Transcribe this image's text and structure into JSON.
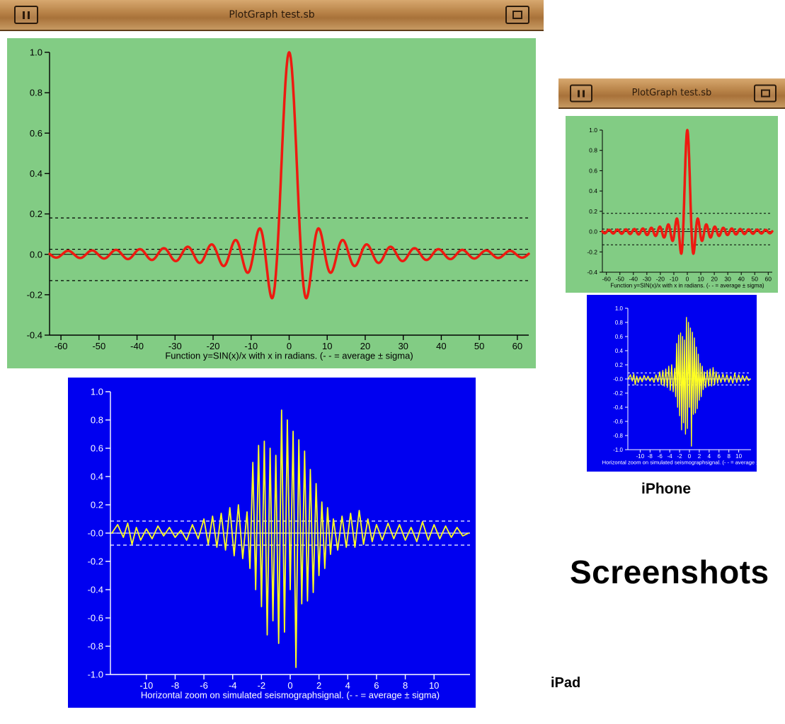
{
  "window_title": "PlotGraph test.sb",
  "device_labels": {
    "iphone": "iPhone",
    "ipad": "iPad",
    "heading": "Screenshots"
  },
  "colors": {
    "green_bg": "#82cc84",
    "blue_bg": "#0000f0",
    "red_line": "#ee1a10",
    "yellow_line": "#ffff22"
  },
  "icons": {
    "pause": "pause-icon",
    "window": "window-icon"
  },
  "chart_data": [
    {
      "type": "line",
      "title": "",
      "xlabel": "Function y=SIN(x)/x with x in radians. (- - = average ± sigma)",
      "ylabel": "",
      "xlim": [
        -63,
        63
      ],
      "ylim": [
        -0.4,
        1.0
      ],
      "x_ticks": [
        -60,
        -50,
        -40,
        -30,
        -20,
        -10,
        0,
        10,
        20,
        30,
        40,
        50,
        60
      ],
      "y_ticks": [
        1.0,
        0.8,
        0.6,
        0.4,
        0.2,
        0.0,
        -0.2,
        -0.4
      ],
      "function": "sin(x)/x",
      "x_range": [
        -63,
        63
      ],
      "reference_lines": {
        "average": 0.025,
        "upper_sigma": 0.18,
        "lower_sigma": -0.13
      },
      "legend": "none",
      "grid": false
    },
    {
      "type": "line",
      "title": "",
      "xlabel": "Horizontal zoom on simulated seismographsignal. (- - = average ± sigma)",
      "ylabel": "",
      "xlim": [
        -12.5,
        12.5
      ],
      "ylim": [
        -1.0,
        1.0
      ],
      "x_ticks": [
        -10,
        -8,
        -6,
        -4,
        -2,
        0,
        2,
        4,
        6,
        8,
        10
      ],
      "y_ticks": [
        1.0,
        0.8,
        0.6,
        0.4,
        0.2,
        -0.0,
        -0.2,
        -0.4,
        -0.6,
        -0.8,
        -1.0
      ],
      "x": [
        -12.4,
        -12.0,
        -11.6,
        -11.3,
        -11.0,
        -10.7,
        -10.4,
        -10.0,
        -9.6,
        -9.2,
        -8.8,
        -8.4,
        -8.0,
        -7.6,
        -7.2,
        -6.8,
        -6.4,
        -6.0,
        -5.7,
        -5.4,
        -5.1,
        -4.8,
        -4.5,
        -4.2,
        -3.9,
        -3.6,
        -3.3,
        -3.0,
        -2.8,
        -2.6,
        -2.4,
        -2.2,
        -2.0,
        -1.8,
        -1.6,
        -1.4,
        -1.2,
        -1.0,
        -0.8,
        -0.6,
        -0.4,
        -0.2,
        0.0,
        0.2,
        0.4,
        0.6,
        0.8,
        1.0,
        1.2,
        1.4,
        1.6,
        1.8,
        2.0,
        2.2,
        2.4,
        2.6,
        2.8,
        3.0,
        3.3,
        3.6,
        3.9,
        4.2,
        4.5,
        4.8,
        5.1,
        5.4,
        5.7,
        6.0,
        6.4,
        6.8,
        7.2,
        7.6,
        8.0,
        8.4,
        8.8,
        9.2,
        9.6,
        10.0,
        10.4,
        10.8,
        11.2,
        11.6,
        12.0,
        12.4
      ],
      "y": [
        0.0,
        0.06,
        -0.03,
        0.07,
        -0.08,
        0.04,
        -0.05,
        0.03,
        -0.04,
        0.05,
        -0.02,
        0.04,
        -0.03,
        0.02,
        -0.05,
        0.06,
        -0.04,
        0.1,
        -0.08,
        0.12,
        -0.1,
        0.14,
        -0.12,
        0.18,
        -0.16,
        0.2,
        -0.18,
        0.15,
        -0.25,
        0.5,
        -0.4,
        0.62,
        -0.52,
        0.65,
        -0.72,
        0.6,
        -0.62,
        0.55,
        -0.78,
        0.87,
        -0.7,
        0.8,
        -0.4,
        0.72,
        -0.95,
        0.66,
        -0.5,
        0.58,
        -0.48,
        0.45,
        -0.42,
        0.35,
        -0.3,
        0.22,
        -0.25,
        0.18,
        -0.15,
        0.1,
        -0.12,
        0.12,
        -0.1,
        0.14,
        -0.1,
        0.16,
        -0.08,
        0.1,
        -0.06,
        0.06,
        -0.05,
        0.07,
        -0.04,
        0.06,
        -0.05,
        0.04,
        -0.06,
        0.08,
        -0.05,
        0.06,
        -0.04,
        0.05,
        -0.03,
        0.04,
        -0.02,
        0.0
      ],
      "reference_lines": {
        "average": 0.0,
        "upper_sigma": 0.085,
        "lower_sigma": -0.085
      },
      "legend": "none",
      "grid": false
    }
  ]
}
